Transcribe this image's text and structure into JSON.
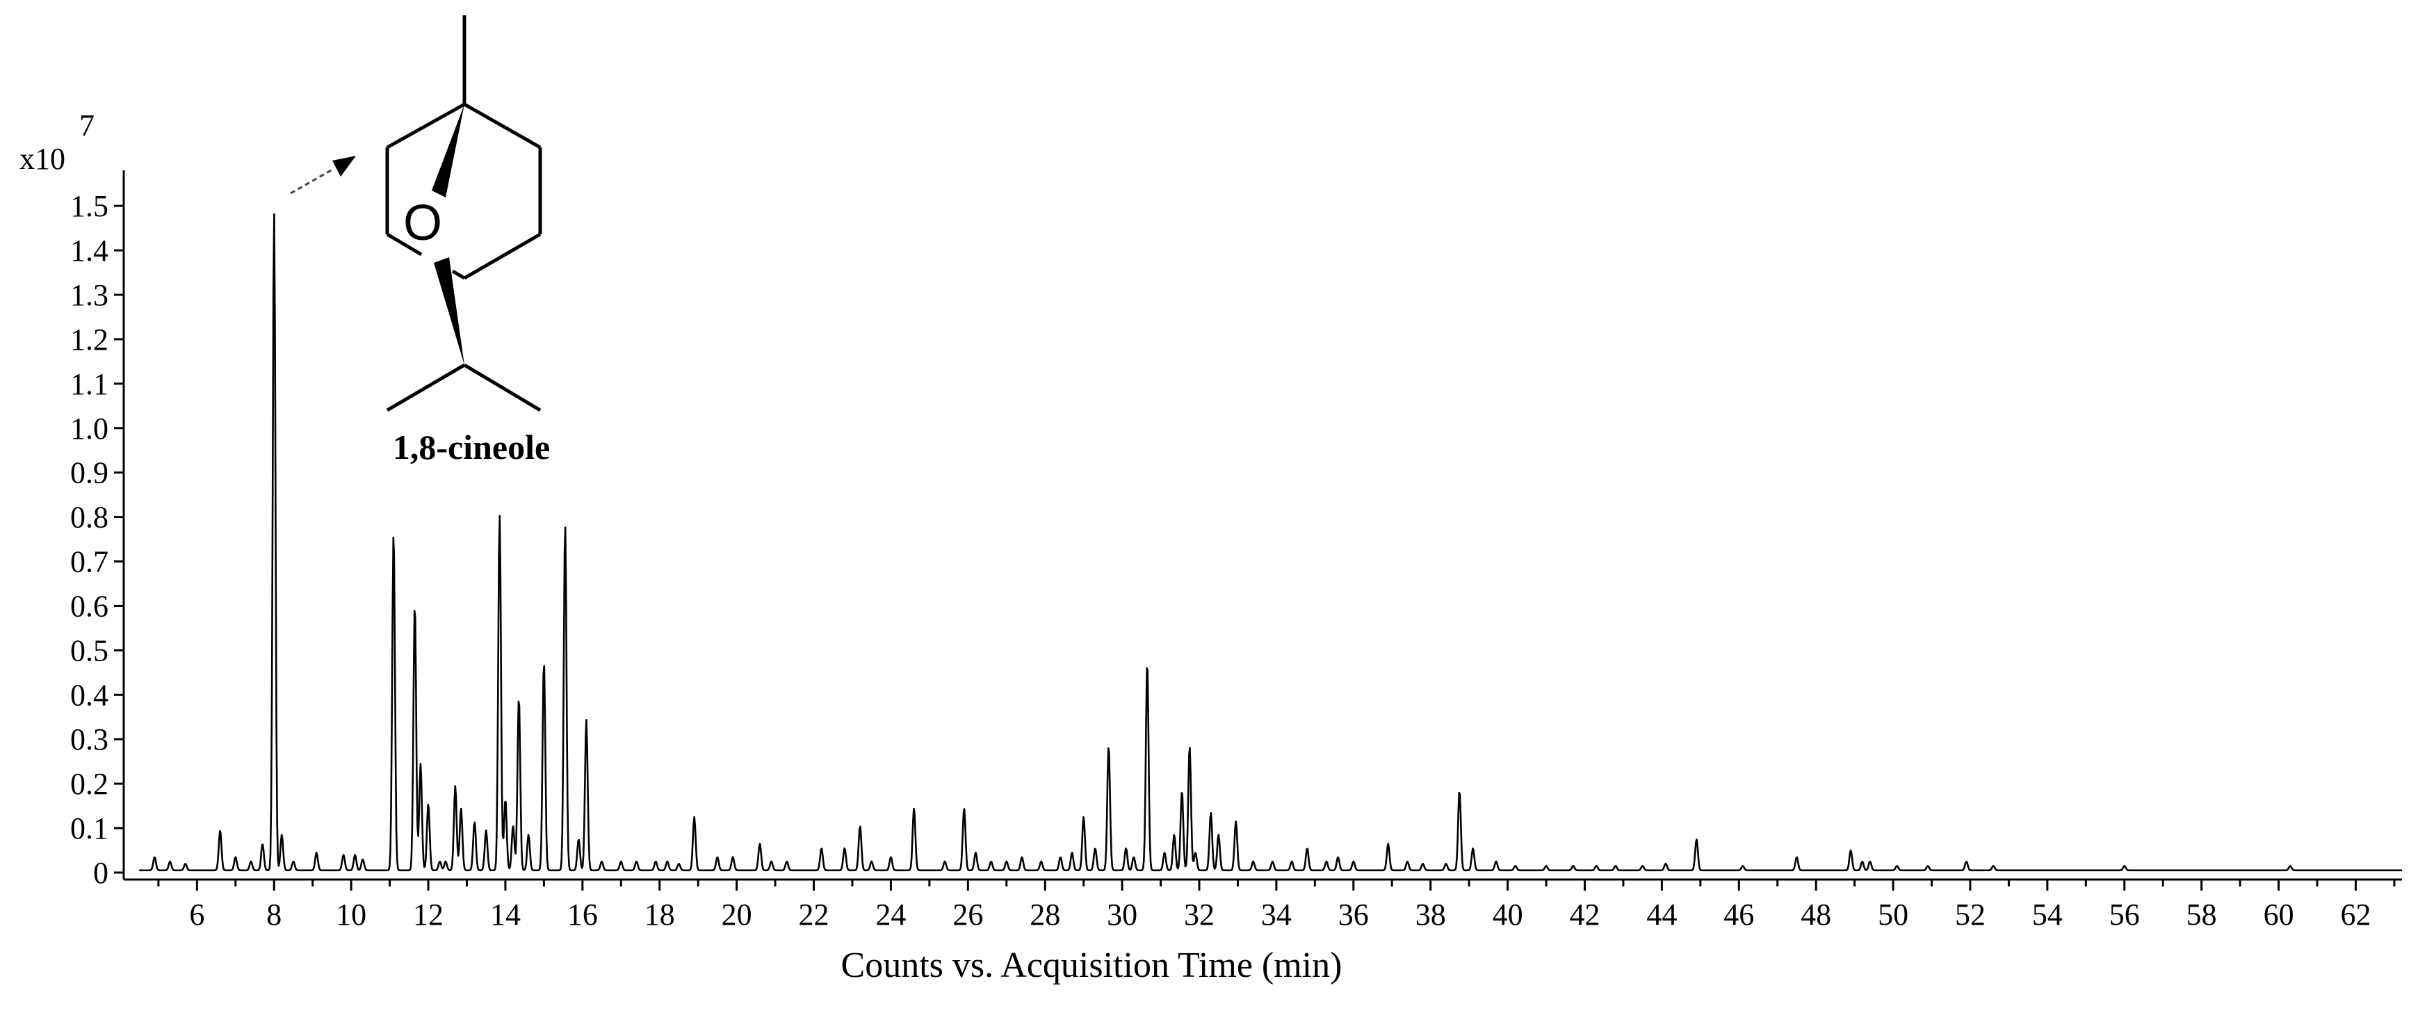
{
  "chart_data": {
    "type": "line",
    "title": "",
    "xlabel": "Counts vs. Acquisition Time (min)",
    "ylabel": "",
    "y_multiplier_label": "x10",
    "y_multiplier_exponent": "7",
    "xlim": [
      4.1,
      63.2
    ],
    "ylim": [
      0,
      1.58
    ],
    "x_ticks": [
      6,
      8,
      10,
      12,
      14,
      16,
      18,
      20,
      22,
      24,
      26,
      28,
      30,
      32,
      34,
      36,
      38,
      40,
      42,
      44,
      46,
      48,
      50,
      52,
      54,
      56,
      58,
      60,
      62
    ],
    "y_ticks": [
      0,
      0.1,
      0.2,
      0.3,
      0.4,
      0.5,
      0.6,
      0.7,
      0.8,
      0.9,
      1.0,
      1.1,
      1.2,
      1.3,
      1.4,
      1.5
    ],
    "y_tick_labels": [
      "0",
      "0.1",
      "0.2",
      "0.3",
      "0.4",
      "0.5",
      "0.6",
      "0.7",
      "0.8",
      "0.9",
      "1.0",
      "1.1",
      "1.2",
      "1.3",
      "1.4",
      "1.5"
    ],
    "baseline": 0.005,
    "peaks": [
      [
        4.9,
        0.03
      ],
      [
        5.3,
        0.02
      ],
      [
        5.7,
        0.015
      ],
      [
        6.6,
        0.09
      ],
      [
        7.0,
        0.03
      ],
      [
        7.4,
        0.02
      ],
      [
        7.7,
        0.06
      ],
      [
        8.0,
        1.48
      ],
      [
        8.2,
        0.08
      ],
      [
        8.5,
        0.02
      ],
      [
        9.1,
        0.04
      ],
      [
        9.8,
        0.035
      ],
      [
        10.1,
        0.035
      ],
      [
        10.3,
        0.025
      ],
      [
        11.1,
        0.76
      ],
      [
        11.65,
        0.6
      ],
      [
        11.8,
        0.24
      ],
      [
        12.0,
        0.15
      ],
      [
        12.3,
        0.02
      ],
      [
        12.45,
        0.02
      ],
      [
        12.7,
        0.19
      ],
      [
        12.85,
        0.14
      ],
      [
        13.2,
        0.11
      ],
      [
        13.5,
        0.09
      ],
      [
        13.85,
        0.8
      ],
      [
        14.0,
        0.16
      ],
      [
        14.2,
        0.1
      ],
      [
        14.35,
        0.39
      ],
      [
        14.6,
        0.08
      ],
      [
        15.0,
        0.47
      ],
      [
        15.55,
        0.78
      ],
      [
        15.9,
        0.07
      ],
      [
        16.1,
        0.34
      ],
      [
        16.5,
        0.02
      ],
      [
        17.0,
        0.02
      ],
      [
        17.4,
        0.02
      ],
      [
        17.9,
        0.02
      ],
      [
        18.2,
        0.02
      ],
      [
        18.5,
        0.015
      ],
      [
        18.9,
        0.12
      ],
      [
        19.5,
        0.03
      ],
      [
        19.9,
        0.03
      ],
      [
        20.6,
        0.06
      ],
      [
        20.9,
        0.02
      ],
      [
        21.3,
        0.02
      ],
      [
        22.2,
        0.05
      ],
      [
        22.8,
        0.05
      ],
      [
        23.2,
        0.1
      ],
      [
        23.5,
        0.02
      ],
      [
        24.0,
        0.03
      ],
      [
        24.6,
        0.14
      ],
      [
        25.4,
        0.02
      ],
      [
        25.9,
        0.14
      ],
      [
        26.2,
        0.04
      ],
      [
        26.6,
        0.02
      ],
      [
        27.0,
        0.02
      ],
      [
        27.4,
        0.03
      ],
      [
        27.9,
        0.02
      ],
      [
        28.4,
        0.03
      ],
      [
        28.7,
        0.04
      ],
      [
        29.0,
        0.12
      ],
      [
        29.3,
        0.05
      ],
      [
        29.65,
        0.28
      ],
      [
        30.1,
        0.05
      ],
      [
        30.3,
        0.03
      ],
      [
        30.65,
        0.47
      ],
      [
        31.1,
        0.04
      ],
      [
        31.35,
        0.08
      ],
      [
        31.55,
        0.18
      ],
      [
        31.75,
        0.28
      ],
      [
        31.9,
        0.04
      ],
      [
        32.3,
        0.13
      ],
      [
        32.5,
        0.08
      ],
      [
        32.95,
        0.11
      ],
      [
        33.4,
        0.02
      ],
      [
        33.9,
        0.02
      ],
      [
        34.4,
        0.02
      ],
      [
        34.8,
        0.05
      ],
      [
        35.3,
        0.02
      ],
      [
        35.6,
        0.03
      ],
      [
        36.0,
        0.02
      ],
      [
        36.9,
        0.06
      ],
      [
        37.4,
        0.02
      ],
      [
        37.8,
        0.015
      ],
      [
        38.4,
        0.015
      ],
      [
        38.75,
        0.18
      ],
      [
        39.1,
        0.05
      ],
      [
        39.7,
        0.02
      ],
      [
        40.2,
        0.01
      ],
      [
        41.0,
        0.01
      ],
      [
        41.7,
        0.01
      ],
      [
        42.3,
        0.01
      ],
      [
        42.8,
        0.01
      ],
      [
        43.5,
        0.01
      ],
      [
        44.1,
        0.015
      ],
      [
        44.9,
        0.07
      ],
      [
        46.1,
        0.01
      ],
      [
        47.5,
        0.03
      ],
      [
        48.9,
        0.045
      ],
      [
        49.2,
        0.02
      ],
      [
        49.4,
        0.02
      ],
      [
        50.1,
        0.01
      ],
      [
        50.9,
        0.01
      ],
      [
        51.9,
        0.02
      ],
      [
        52.6,
        0.01
      ],
      [
        56.0,
        0.01
      ],
      [
        60.3,
        0.01
      ]
    ],
    "annotation": {
      "compound": "1,8-cineole",
      "atom_label": "O",
      "peak_time": 8.0
    }
  }
}
